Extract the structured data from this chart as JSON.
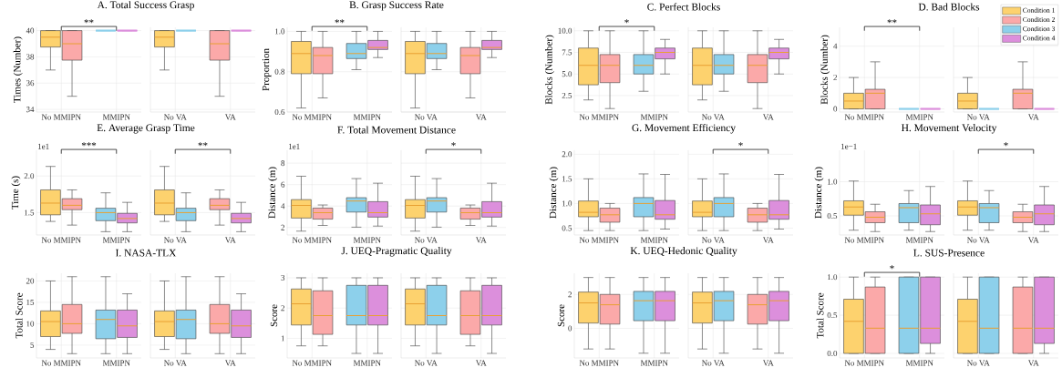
{
  "chart_data": [
    {
      "type": "box",
      "title": "A. Total Success Grasp",
      "ylabel": "Times (Number)",
      "categories": [
        "No MMIPN",
        "MMIPN"
      ],
      "ylim": [
        33.8,
        40.25
      ],
      "yticks": [
        34,
        36,
        38,
        40
      ],
      "grid": true,
      "annotations": [
        "**"
      ],
      "series": [
        {
          "color": "#fdd26e",
          "boxes": [
            {
              "low": 37,
              "q1": 38.75,
              "median": 39.5,
              "q3": 40,
              "high": 40
            },
            null
          ]
        },
        {
          "color": "#fba9a9",
          "boxes": [
            {
              "low": 35,
              "q1": 37.75,
              "median": 39,
              "q3": 40,
              "high": 40
            },
            null
          ]
        },
        {
          "color": "#8dd0eb",
          "boxes": [
            null,
            {
              "low": 40,
              "q1": 40,
              "median": 40,
              "q3": 40,
              "high": 40
            }
          ]
        },
        {
          "color": "#dc8fdc",
          "boxes": [
            null,
            {
              "low": 40,
              "q1": 40,
              "median": 40,
              "q3": 40,
              "high": 40
            }
          ]
        }
      ]
    },
    {
      "type": "box",
      "categories": [
        "No VA",
        "VA"
      ],
      "ylim": [
        33.8,
        40.25
      ],
      "yticks": [
        34,
        36,
        38,
        40
      ],
      "grid": true,
      "tick_labels": "x",
      "series": [
        {
          "color": "#fdd26e",
          "boxes": [
            {
              "low": 37,
              "q1": 38.75,
              "median": 39.5,
              "q3": 40,
              "high": 40
            },
            null
          ]
        },
        {
          "color": "#fba9a9",
          "boxes": [
            null,
            {
              "low": 35,
              "q1": 37.75,
              "median": 39,
              "q3": 40,
              "high": 40
            }
          ]
        },
        {
          "color": "#8dd0eb",
          "boxes": [
            {
              "low": 40,
              "q1": 40,
              "median": 40,
              "q3": 40,
              "high": 40
            },
            null
          ]
        },
        {
          "color": "#dc8fdc",
          "boxes": [
            null,
            {
              "low": 40,
              "q1": 40,
              "median": 40,
              "q3": 40,
              "high": 40
            }
          ]
        }
      ]
    },
    {
      "type": "box",
      "title": "B. Grasp Success Rate",
      "ylabel": "Proportion",
      "categories": [
        "No MMIPN",
        "MMIPN"
      ],
      "ylim": [
        0.6,
        1.02
      ],
      "yticks": [
        0.6,
        0.8,
        {
          "value": 1,
          "label": "1.0"
        }
      ],
      "grid": true,
      "annotations": [
        "**"
      ],
      "series": [
        {
          "color": "#fdd26e",
          "boxes": [
            {
              "low": 0.62,
              "q1": 0.79,
              "median": 0.89,
              "q3": 0.95,
              "high": 1.0
            },
            null
          ]
        },
        {
          "color": "#fba9a9",
          "boxes": [
            {
              "low": 0.67,
              "q1": 0.79,
              "median": 0.88,
              "q3": 0.92,
              "high": 1.0
            },
            null
          ]
        },
        {
          "color": "#8dd0eb",
          "boxes": [
            null,
            {
              "low": 0.81,
              "q1": 0.865,
              "median": 0.89,
              "q3": 0.94,
              "high": 1.0
            }
          ]
        },
        {
          "color": "#dc8fdc",
          "boxes": [
            null,
            {
              "low": 0.87,
              "q1": 0.91,
              "median": 0.92,
              "q3": 0.955,
              "high": 1.0
            }
          ]
        }
      ]
    },
    {
      "type": "box",
      "categories": [
        "No VA",
        "VA"
      ],
      "ylim": [
        0.6,
        1.02
      ],
      "yticks": [
        0.6,
        0.8,
        1
      ],
      "grid": true,
      "tick_labels": "x",
      "series": [
        {
          "color": "#fdd26e",
          "boxes": [
            {
              "low": 0.62,
              "q1": 0.79,
              "median": 0.89,
              "q3": 0.95,
              "high": 1.0
            },
            null
          ]
        },
        {
          "color": "#fba9a9",
          "boxes": [
            null,
            {
              "low": 0.67,
              "q1": 0.79,
              "median": 0.88,
              "q3": 0.92,
              "high": 1.0
            }
          ]
        },
        {
          "color": "#8dd0eb",
          "boxes": [
            {
              "low": 0.81,
              "q1": 0.865,
              "median": 0.89,
              "q3": 0.94,
              "high": 1.0
            },
            null
          ]
        },
        {
          "color": "#dc8fdc",
          "boxes": [
            null,
            {
              "low": 0.87,
              "q1": 0.91,
              "median": 0.92,
              "q3": 0.955,
              "high": 1.0
            }
          ]
        }
      ]
    },
    {
      "type": "box",
      "title": "C. Perfect Blocks",
      "ylabel": "Blocks (Number)",
      "categories": [
        "No MMIPN",
        "MMIPN"
      ],
      "ylim": [
        0.6,
        10.4
      ],
      "yticks": [
        2.5,
        {
          "value": 5,
          "label": "5.0"
        },
        7.5,
        {
          "value": 10,
          "label": "10.0"
        }
      ],
      "grid": true,
      "annotations": [
        "*"
      ],
      "series": [
        {
          "color": "#fdd26e",
          "boxes": [
            {
              "low": 2,
              "q1": 3.75,
              "median": 6,
              "q3": 8,
              "high": 10
            },
            null
          ]
        },
        {
          "color": "#fba9a9",
          "boxes": [
            {
              "low": 1,
              "q1": 4,
              "median": 6,
              "q3": 7.25,
              "high": 10
            },
            null
          ]
        },
        {
          "color": "#8dd0eb",
          "boxes": [
            null,
            {
              "low": 3,
              "q1": 5,
              "median": 6,
              "q3": 7.25,
              "high": 10
            }
          ]
        },
        {
          "color": "#dc8fdc",
          "boxes": [
            null,
            {
              "low": 5,
              "q1": 6.75,
              "median": 7.5,
              "q3": 8,
              "high": 9
            }
          ]
        }
      ]
    },
    {
      "type": "box",
      "categories": [
        "No VA",
        "VA"
      ],
      "ylim": [
        0.6,
        10.4
      ],
      "yticks": [
        2.5,
        5,
        7.5,
        10
      ],
      "grid": true,
      "tick_labels": "x",
      "series": [
        {
          "color": "#fdd26e",
          "boxes": [
            {
              "low": 2,
              "q1": 3.75,
              "median": 6,
              "q3": 8,
              "high": 10
            },
            null
          ]
        },
        {
          "color": "#fba9a9",
          "boxes": [
            null,
            {
              "low": 1,
              "q1": 4,
              "median": 6,
              "q3": 7.25,
              "high": 10
            }
          ]
        },
        {
          "color": "#8dd0eb",
          "boxes": [
            {
              "low": 3,
              "q1": 5,
              "median": 6,
              "q3": 7.25,
              "high": 10
            },
            null
          ]
        },
        {
          "color": "#dc8fdc",
          "boxes": [
            null,
            {
              "low": 5,
              "q1": 6.75,
              "median": 7.5,
              "q3": 8,
              "high": 9
            }
          ]
        }
      ]
    },
    {
      "type": "box",
      "title": "D. Bad Blocks",
      "ylabel": "Blocks (Number)",
      "categories": [
        "No MMIPN",
        "MMIPN"
      ],
      "ylim": [
        -0.2,
        5.2
      ],
      "yticks": [
        0,
        2,
        4
      ],
      "grid": true,
      "annotations": [
        "**"
      ],
      "series": [
        {
          "color": "#fdd26e",
          "boxes": [
            {
              "low": 0,
              "q1": 0,
              "median": 0.5,
              "q3": 1,
              "high": 2
            },
            null
          ]
        },
        {
          "color": "#fba9a9",
          "boxes": [
            {
              "low": 0,
              "q1": 0,
              "median": 1,
              "q3": 1.25,
              "high": 3
            },
            null
          ]
        },
        {
          "color": "#8dd0eb",
          "boxes": [
            null,
            {
              "low": 0,
              "q1": 0,
              "median": 0,
              "q3": 0,
              "high": 0
            }
          ]
        },
        {
          "color": "#dc8fdc",
          "boxes": [
            null,
            {
              "low": 0,
              "q1": 0,
              "median": 0,
              "q3": 0,
              "high": 0
            }
          ]
        }
      ]
    },
    {
      "type": "box",
      "categories": [
        "No VA",
        "VA"
      ],
      "ylim": [
        -0.2,
        5.2
      ],
      "yticks": [
        0,
        2,
        4
      ],
      "grid": true,
      "tick_labels": "x",
      "legend": "top right",
      "series": [
        {
          "name": "Condition 1",
          "color": "#fdd26e",
          "boxes": [
            {
              "low": 0,
              "q1": 0,
              "median": 0.5,
              "q3": 1,
              "high": 2
            },
            null
          ]
        },
        {
          "name": "Condition 2",
          "color": "#fba9a9",
          "boxes": [
            null,
            {
              "low": 0,
              "q1": 0,
              "median": 1,
              "q3": 1.25,
              "high": 3
            }
          ]
        },
        {
          "name": "Condition 3",
          "color": "#8dd0eb",
          "boxes": [
            {
              "low": 0,
              "q1": 0,
              "median": 0,
              "q3": 0,
              "high": 0
            },
            null
          ]
        },
        {
          "name": "Condition 4",
          "color": "#dc8fdc",
          "boxes": [
            null,
            {
              "low": 0,
              "q1": 0,
              "median": 0,
              "q3": 0,
              "high": 0
            }
          ]
        }
      ]
    },
    {
      "type": "box",
      "title": "E. Average Grasp Time",
      "ylabel": "Time (s)",
      "categories": [
        "No MMIPN",
        "MMIPN"
      ],
      "ylim": [
        1.195,
        2.35
      ],
      "yticks": [
        1.5,
        {
          "value": 2,
          "label": "2.0"
        }
      ],
      "grid": true,
      "annotations": [
        {
          "text": "1e1"
        },
        "***"
      ],
      "series": [
        {
          "color": "#fdd26e",
          "boxes": [
            {
              "low": 1.38,
              "q1": 1.47,
              "median": 1.63,
              "q3": 1.81,
              "high": 2.13
            },
            null
          ]
        },
        {
          "color": "#fba9a9",
          "boxes": [
            {
              "low": 1.33,
              "q1": 1.54,
              "median": 1.6,
              "q3": 1.69,
              "high": 1.81
            },
            null
          ]
        },
        {
          "color": "#8dd0eb",
          "boxes": [
            null,
            {
              "low": 1.24,
              "q1": 1.39,
              "median": 1.5,
              "q3": 1.56,
              "high": 1.77
            }
          ]
        },
        {
          "color": "#dc8fdc",
          "boxes": [
            null,
            {
              "low": 1.24,
              "q1": 1.36,
              "median": 1.42,
              "q3": 1.49,
              "high": 1.64
            }
          ]
        }
      ]
    },
    {
      "type": "box",
      "categories": [
        "No VA",
        "VA"
      ],
      "ylim": [
        1.195,
        2.35
      ],
      "yticks": [
        1.5,
        2
      ],
      "grid": true,
      "tick_labels": "x",
      "annotations": [
        "**"
      ],
      "series": [
        {
          "color": "#fdd26e",
          "boxes": [
            {
              "low": 1.38,
              "q1": 1.47,
              "median": 1.63,
              "q3": 1.81,
              "high": 2.13
            },
            null
          ]
        },
        {
          "color": "#fba9a9",
          "boxes": [
            null,
            {
              "low": 1.33,
              "q1": 1.54,
              "median": 1.6,
              "q3": 1.69,
              "high": 1.81
            }
          ]
        },
        {
          "color": "#8dd0eb",
          "boxes": [
            {
              "low": 1.24,
              "q1": 1.39,
              "median": 1.5,
              "q3": 1.56,
              "high": 1.77
            },
            null
          ]
        },
        {
          "color": "#dc8fdc",
          "boxes": [
            null,
            {
              "low": 1.24,
              "q1": 1.36,
              "median": 1.42,
              "q3": 1.49,
              "high": 1.64
            }
          ]
        }
      ]
    },
    {
      "type": "box",
      "title": "F. Total Movement Distance",
      "ylabel": "Distance (m)",
      "categories": [
        "No MMIPN",
        "MMIPN"
      ],
      "ylim": [
        1.3,
        9.2
      ],
      "yticks": [
        2,
        4,
        6,
        8
      ],
      "grid": true,
      "annotations": [
        {
          "text": "1e1"
        }
      ],
      "series": [
        {
          "color": "#fdd26e",
          "boxes": [
            {
              "low": 1.66,
              "q1": 2.88,
              "median": 4.06,
              "q3": 4.6,
              "high": 6.78
            },
            null
          ]
        },
        {
          "color": "#fba9a9",
          "boxes": [
            {
              "low": 2.19,
              "q1": 2.78,
              "median": 3.38,
              "q3": 3.81,
              "high": 4.1
            },
            null
          ]
        },
        {
          "color": "#8dd0eb",
          "boxes": [
            null,
            {
              "low": 2.03,
              "q1": 3.44,
              "median": 4.47,
              "q3": 4.78,
              "high": 6.56
            }
          ]
        },
        {
          "color": "#dc8fdc",
          "boxes": [
            null,
            {
              "low": 2.13,
              "q1": 2.97,
              "median": 3.38,
              "q3": 4.41,
              "high": 6.13
            }
          ]
        }
      ]
    },
    {
      "type": "box",
      "categories": [
        "No VA",
        "VA"
      ],
      "ylim": [
        1.3,
        9.2
      ],
      "yticks": [
        2,
        4,
        6,
        8
      ],
      "grid": true,
      "tick_labels": "x",
      "annotations": [
        "*"
      ],
      "series": [
        {
          "color": "#fdd26e",
          "boxes": [
            {
              "low": 1.66,
              "q1": 2.88,
              "median": 4.06,
              "q3": 4.6,
              "high": 6.78
            },
            null
          ]
        },
        {
          "color": "#fba9a9",
          "boxes": [
            null,
            {
              "low": 2.19,
              "q1": 2.78,
              "median": 3.38,
              "q3": 3.81,
              "high": 4.1
            }
          ]
        },
        {
          "color": "#8dd0eb",
          "boxes": [
            {
              "low": 2.03,
              "q1": 3.44,
              "median": 4.47,
              "q3": 4.78,
              "high": 6.56
            },
            null
          ]
        },
        {
          "color": "#dc8fdc",
          "boxes": [
            null,
            {
              "low": 2.13,
              "q1": 2.97,
              "median": 3.38,
              "q3": 4.41,
              "high": 6.13
            }
          ]
        }
      ]
    },
    {
      "type": "box",
      "title": "G. Movement Efficiency",
      "ylabel": "Distance (m)",
      "categories": [
        "No MMIPN",
        "MMIPN"
      ],
      "ylim": [
        0.36,
        2.08
      ],
      "yticks": [
        0.5,
        {
          "value": 1,
          "label": "1.0"
        },
        1.5,
        {
          "value": 2,
          "label": "2.0"
        }
      ],
      "grid": true,
      "series": [
        {
          "color": "#fdd26e",
          "boxes": [
            {
              "low": 0.45,
              "q1": 0.73,
              "median": 0.82,
              "q3": 1.05,
              "high": 1.5
            },
            null
          ]
        },
        {
          "color": "#fba9a9",
          "boxes": [
            {
              "low": 0.45,
              "q1": 0.62,
              "median": 0.77,
              "q3": 0.905,
              "high": 1.0
            },
            null
          ]
        },
        {
          "color": "#8dd0eb",
          "boxes": [
            null,
            {
              "low": 0.45,
              "q1": 0.73,
              "median": 1.0,
              "q3": 1.12,
              "high": 1.6
            }
          ]
        },
        {
          "color": "#dc8fdc",
          "boxes": [
            null,
            {
              "low": 0.48,
              "q1": 0.68,
              "median": 0.77,
              "q3": 1.06,
              "high": 1.59
            }
          ]
        }
      ]
    },
    {
      "type": "box",
      "categories": [
        "No VA",
        "VA"
      ],
      "ylim": [
        0.36,
        2.08
      ],
      "yticks": [
        0.5,
        1,
        1.5,
        2
      ],
      "grid": true,
      "tick_labels": "x",
      "annotations": [
        "*"
      ],
      "series": [
        {
          "color": "#fdd26e",
          "boxes": [
            {
              "low": 0.45,
              "q1": 0.73,
              "median": 0.82,
              "q3": 1.05,
              "high": 1.5
            },
            null
          ]
        },
        {
          "color": "#fba9a9",
          "boxes": [
            null,
            {
              "low": 0.45,
              "q1": 0.62,
              "median": 0.77,
              "q3": 0.905,
              "high": 1.0
            }
          ]
        },
        {
          "color": "#8dd0eb",
          "boxes": [
            {
              "low": 0.45,
              "q1": 0.73,
              "median": 1.0,
              "q3": 1.12,
              "high": 1.6
            },
            null
          ]
        },
        {
          "color": "#dc8fdc",
          "boxes": [
            null,
            {
              "low": 0.48,
              "q1": 0.68,
              "median": 0.77,
              "q3": 1.06,
              "high": 1.59
            }
          ]
        }
      ]
    },
    {
      "type": "box",
      "title": "H. Movement Velocity",
      "ylabel": "Distance (m)",
      "categories": [
        "No MMIPN",
        "MMIPN"
      ],
      "ylim": [
        0.22,
        1.46
      ],
      "yticks": [
        0.5,
        {
          "value": 1,
          "label": "1.0"
        }
      ],
      "grid": true,
      "annotations": [
        {
          "text": "1e−1"
        }
      ],
      "series": [
        {
          "color": "#fdd26e",
          "boxes": [
            {
              "low": 0.29,
              "q1": 0.51,
              "median": 0.63,
              "q3": 0.72,
              "high": 1.01
            },
            null
          ]
        },
        {
          "color": "#fba9a9",
          "boxes": [
            {
              "low": 0.27,
              "q1": 0.4,
              "median": 0.48,
              "q3": 0.56,
              "high": 0.67
            },
            null
          ]
        },
        {
          "color": "#8dd0eb",
          "boxes": [
            null,
            {
              "low": 0.29,
              "q1": 0.4,
              "median": 0.62,
              "q3": 0.68,
              "high": 0.87
            }
          ]
        },
        {
          "color": "#dc8fdc",
          "boxes": [
            null,
            {
              "low": 0.27,
              "q1": 0.37,
              "median": 0.53,
              "q3": 0.66,
              "high": 0.93
            }
          ]
        }
      ]
    },
    {
      "type": "box",
      "categories": [
        "No VA",
        "VA"
      ],
      "ylim": [
        0.22,
        1.46
      ],
      "yticks": [
        0.5,
        1
      ],
      "grid": true,
      "tick_labels": "x",
      "annotations": [
        "*"
      ],
      "series": [
        {
          "color": "#fdd26e",
          "boxes": [
            {
              "low": 0.29,
              "q1": 0.51,
              "median": 0.63,
              "q3": 0.72,
              "high": 1.01
            },
            null
          ]
        },
        {
          "color": "#fba9a9",
          "boxes": [
            null,
            {
              "low": 0.27,
              "q1": 0.4,
              "median": 0.48,
              "q3": 0.56,
              "high": 0.67
            }
          ]
        },
        {
          "color": "#8dd0eb",
          "boxes": [
            {
              "low": 0.29,
              "q1": 0.4,
              "median": 0.62,
              "q3": 0.68,
              "high": 0.87
            },
            null
          ]
        },
        {
          "color": "#dc8fdc",
          "boxes": [
            null,
            {
              "low": 0.27,
              "q1": 0.37,
              "median": 0.53,
              "q3": 0.66,
              "high": 0.93
            }
          ]
        }
      ]
    },
    {
      "type": "box",
      "title": "I. NASA-TLX",
      "ylabel": "Total Score",
      "categories": [
        "No MMIPN",
        "MMIPN"
      ],
      "ylim": [
        2,
        21.8
      ],
      "yticks": [
        5,
        10,
        15,
        20
      ],
      "grid": true,
      "series": [
        {
          "color": "#fdd26e",
          "boxes": [
            {
              "low": 4,
              "q1": 7,
              "median": 10.5,
              "q3": 13,
              "high": 20
            },
            null
          ]
        },
        {
          "color": "#fba9a9",
          "boxes": [
            {
              "low": 3,
              "q1": 7.75,
              "median": 10,
              "q3": 14.5,
              "high": 21
            },
            null
          ]
        },
        {
          "color": "#8dd0eb",
          "boxes": [
            null,
            {
              "low": 3,
              "q1": 6.5,
              "median": 11,
              "q3": 13.2,
              "high": 21
            }
          ]
        },
        {
          "color": "#dc8fdc",
          "boxes": [
            null,
            {
              "low": 3,
              "q1": 6.8,
              "median": 9.5,
              "q3": 13.2,
              "high": 17
            }
          ]
        }
      ]
    },
    {
      "type": "box",
      "categories": [
        "No VA",
        "VA"
      ],
      "ylim": [
        2,
        21.8
      ],
      "yticks": [
        5,
        10,
        15,
        20
      ],
      "grid": true,
      "tick_labels": "x",
      "series": [
        {
          "color": "#fdd26e",
          "boxes": [
            {
              "low": 4,
              "q1": 7,
              "median": 10.5,
              "q3": 13,
              "high": 20
            },
            null
          ]
        },
        {
          "color": "#fba9a9",
          "boxes": [
            null,
            {
              "low": 3,
              "q1": 7.75,
              "median": 10,
              "q3": 14.5,
              "high": 21
            }
          ]
        },
        {
          "color": "#8dd0eb",
          "boxes": [
            {
              "low": 3,
              "q1": 6.5,
              "median": 11,
              "q3": 13.2,
              "high": 21
            },
            null
          ]
        },
        {
          "color": "#dc8fdc",
          "boxes": [
            null,
            {
              "low": 3,
              "q1": 6.8,
              "median": 9.5,
              "q3": 13.2,
              "high": 17
            }
          ]
        }
      ]
    },
    {
      "type": "box",
      "title": "J. UEQ-Pragmatic Quality",
      "ylabel": "Score",
      "categories": [
        "No MMIPN",
        "MMIPN"
      ],
      "ylim": [
        0.35,
        3.15
      ],
      "yticks": [
        1,
        2,
        3
      ],
      "grid": true,
      "series": [
        {
          "color": "#fdd26e",
          "boxes": [
            {
              "low": 0.75,
              "q1": 1.44,
              "median": 2.14,
              "q3": 2.63,
              "high": 3
            },
            null
          ]
        },
        {
          "color": "#fba9a9",
          "boxes": [
            {
              "low": 0.75,
              "q1": 1.13,
              "median": 1.75,
              "q3": 2.57,
              "high": 3
            },
            null
          ]
        },
        {
          "color": "#8dd0eb",
          "boxes": [
            null,
            {
              "low": 0.5,
              "q1": 1.44,
              "median": 1.75,
              "q3": 2.75,
              "high": 3
            }
          ]
        },
        {
          "color": "#dc8fdc",
          "boxes": [
            null,
            {
              "low": 0.5,
              "q1": 1.44,
              "median": 1.75,
              "q3": 2.75,
              "high": 3
            }
          ]
        }
      ]
    },
    {
      "type": "box",
      "categories": [
        "No VA",
        "VA"
      ],
      "ylim": [
        0.35,
        3.15
      ],
      "yticks": [
        1,
        2,
        3
      ],
      "grid": true,
      "tick_labels": "x",
      "series": [
        {
          "color": "#fdd26e",
          "boxes": [
            {
              "low": 0.75,
              "q1": 1.44,
              "median": 2.14,
              "q3": 2.63,
              "high": 3
            },
            null
          ]
        },
        {
          "color": "#fba9a9",
          "boxes": [
            null,
            {
              "low": 0.75,
              "q1": 1.13,
              "median": 1.75,
              "q3": 2.57,
              "high": 3
            }
          ]
        },
        {
          "color": "#8dd0eb",
          "boxes": [
            {
              "low": 0.5,
              "q1": 1.44,
              "median": 1.75,
              "q3": 2.75,
              "high": 3
            },
            null
          ]
        },
        {
          "color": "#dc8fdc",
          "boxes": [
            null,
            {
              "low": 0.5,
              "q1": 1.44,
              "median": 1.75,
              "q3": 2.75,
              "high": 3
            }
          ]
        }
      ]
    },
    {
      "type": "box",
      "title": "K. UEQ-Hedonic Quality",
      "ylabel": "Score",
      "categories": [
        "No MMIPN",
        "MMIPN"
      ],
      "ylim": [
        -1.75,
        3.25
      ],
      "yticks": [
        0,
        2
      ],
      "grid": true,
      "series": [
        {
          "color": "#fdd26e",
          "boxes": [
            {
              "low": -1.22,
              "q1": 0.31,
              "median": 1.5,
              "q3": 2.14,
              "high": 3
            },
            null
          ]
        },
        {
          "color": "#fba9a9",
          "boxes": [
            {
              "low": -1.22,
              "q1": 0.25,
              "median": 1.39,
              "q3": 2.0,
              "high": 3
            },
            null
          ]
        },
        {
          "color": "#8dd0eb",
          "boxes": [
            null,
            {
              "low": -1.47,
              "q1": 0.45,
              "median": 1.63,
              "q3": 2.18,
              "high": 3
            }
          ]
        },
        {
          "color": "#dc8fdc",
          "boxes": [
            null,
            {
              "low": -1.47,
              "q1": 0.45,
              "median": 1.63,
              "q3": 2.18,
              "high": 3
            }
          ]
        }
      ]
    },
    {
      "type": "box",
      "categories": [
        "No VA",
        "VA"
      ],
      "ylim": [
        -1.75,
        3.25
      ],
      "yticks": [
        0,
        2
      ],
      "grid": true,
      "tick_labels": "x",
      "series": [
        {
          "color": "#fdd26e",
          "boxes": [
            {
              "low": -1.22,
              "q1": 0.31,
              "median": 1.5,
              "q3": 2.14,
              "high": 3
            },
            null
          ]
        },
        {
          "color": "#fba9a9",
          "boxes": [
            null,
            {
              "low": -1.22,
              "q1": 0.25,
              "median": 1.39,
              "q3": 2.0,
              "high": 3
            }
          ]
        },
        {
          "color": "#8dd0eb",
          "boxes": [
            {
              "low": -1.47,
              "q1": 0.45,
              "median": 1.63,
              "q3": 2.18,
              "high": 3
            },
            null
          ]
        },
        {
          "color": "#dc8fdc",
          "boxes": [
            null,
            {
              "low": -1.47,
              "q1": 0.45,
              "median": 1.63,
              "q3": 2.18,
              "high": 3
            }
          ]
        }
      ]
    },
    {
      "type": "box",
      "title": "L. SUS-Presence",
      "ylabel": "Total Score",
      "categories": [
        "No MMIPN",
        "MMIPN"
      ],
      "ylim": [
        -0.06,
        1.05
      ],
      "yticks": [
        {
          "value": 0,
          "label": "0.0"
        },
        0.5,
        {
          "value": 1,
          "label": "1.0"
        }
      ],
      "grid": true,
      "annotations": [
        "*"
      ],
      "series": [
        {
          "color": "#fdd26e",
          "boxes": [
            {
              "low": 0,
              "q1": 0,
              "median": 0.42,
              "q3": 0.71,
              "high": 1
            },
            null
          ]
        },
        {
          "color": "#fba9a9",
          "boxes": [
            {
              "low": 0,
              "q1": 0,
              "median": 0.33,
              "q3": 0.87,
              "high": 1
            },
            null
          ]
        },
        {
          "color": "#8dd0eb",
          "boxes": [
            null,
            {
              "low": 0,
              "q1": 0,
              "median": 0.33,
              "q3": 1,
              "high": 1
            }
          ]
        },
        {
          "color": "#dc8fdc",
          "boxes": [
            null,
            {
              "low": 0,
              "q1": 0.13,
              "median": 0.33,
              "q3": 1,
              "high": 1
            }
          ]
        }
      ]
    },
    {
      "type": "box",
      "categories": [
        "No VA",
        "VA"
      ],
      "ylim": [
        -0.06,
        1.05
      ],
      "yticks": [
        0,
        0.5,
        1
      ],
      "grid": true,
      "tick_labels": "x",
      "series": [
        {
          "color": "#fdd26e",
          "boxes": [
            {
              "low": 0,
              "q1": 0,
              "median": 0.42,
              "q3": 0.71,
              "high": 1
            },
            null
          ]
        },
        {
          "color": "#fba9a9",
          "boxes": [
            null,
            {
              "low": 0,
              "q1": 0,
              "median": 0.33,
              "q3": 0.87,
              "high": 1
            }
          ]
        },
        {
          "color": "#8dd0eb",
          "boxes": [
            {
              "low": 0,
              "q1": 0,
              "median": 0.33,
              "q3": 1,
              "high": 1
            },
            null
          ]
        },
        {
          "color": "#dc8fdc",
          "boxes": [
            null,
            {
              "low": 0,
              "q1": 0.13,
              "median": 0.33,
              "q3": 1,
              "high": 1
            }
          ]
        }
      ]
    }
  ]
}
